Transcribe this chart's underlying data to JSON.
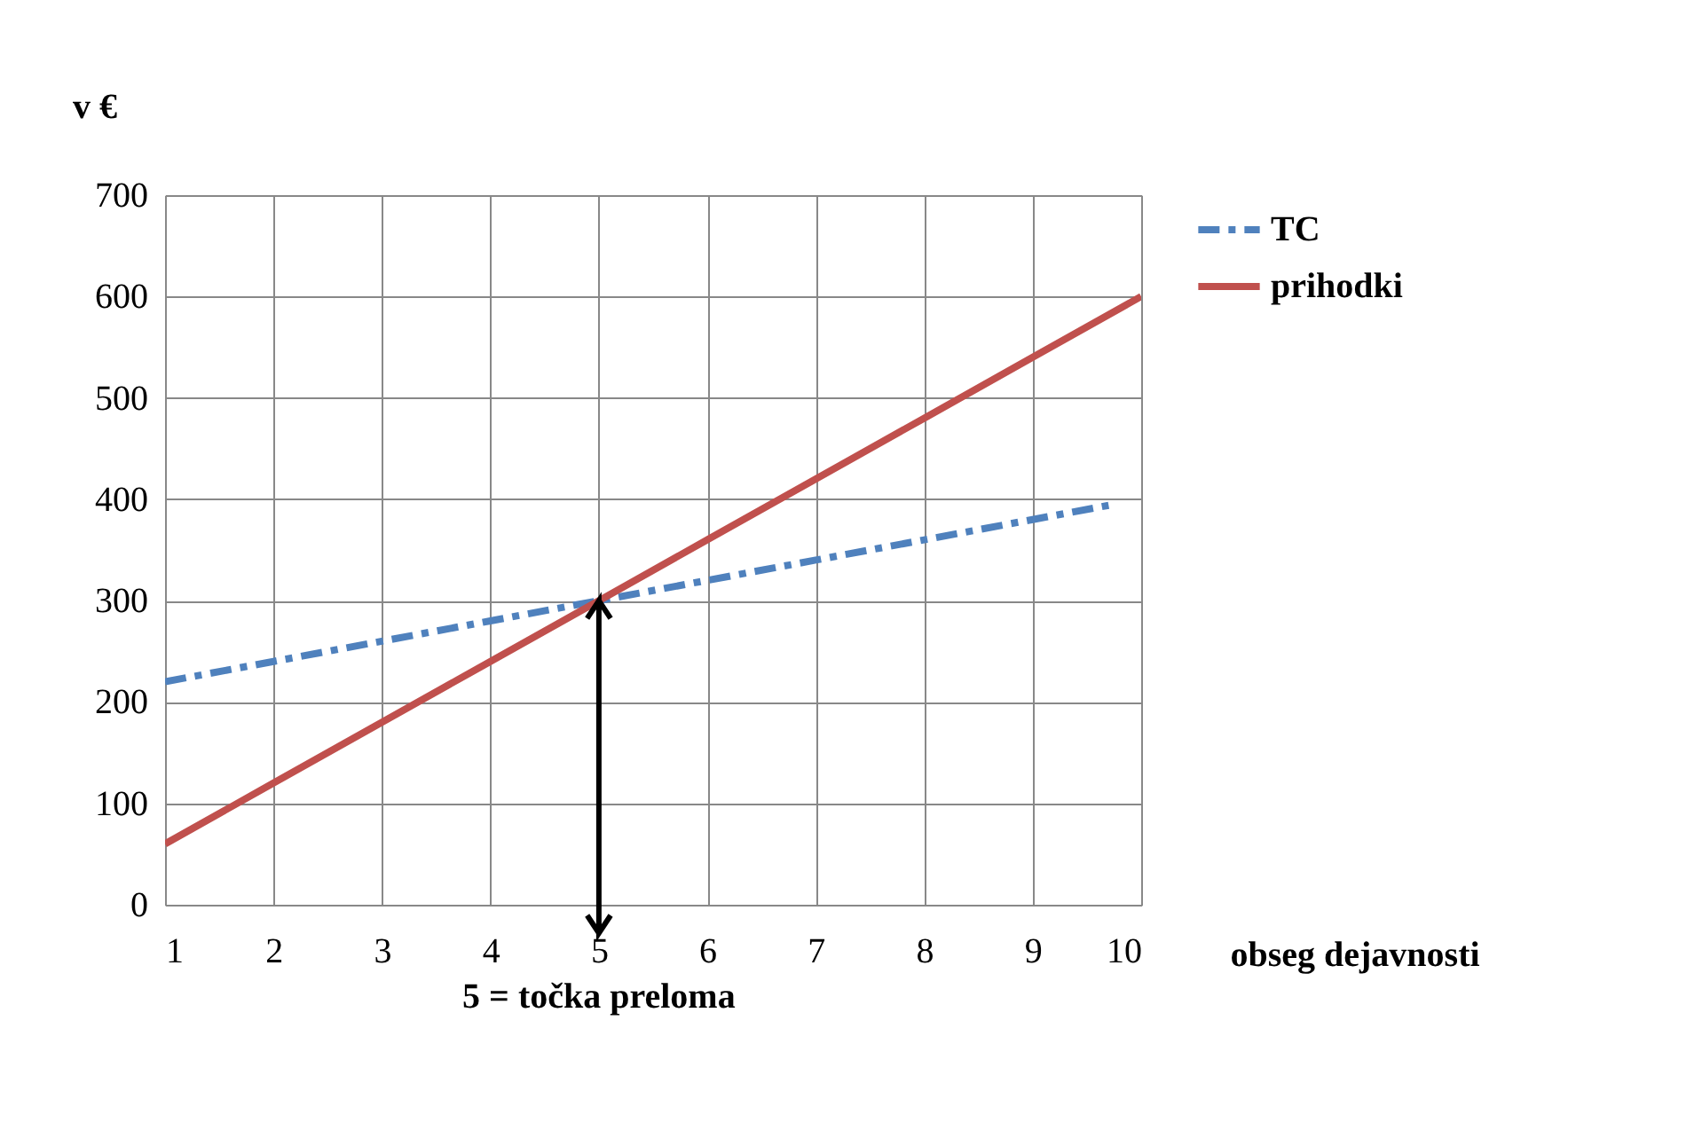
{
  "chart_data": {
    "type": "line",
    "xlabel": "obseg dejavnosti",
    "ylabel": "v €",
    "xlim": [
      1,
      10
    ],
    "xticks": [
      {
        "value": 1,
        "label": "1"
      },
      {
        "value": 2,
        "label": "2"
      },
      {
        "value": 3,
        "label": "3"
      },
      {
        "value": 4,
        "label": "4"
      },
      {
        "value": 5,
        "label": "5"
      },
      {
        "value": 6,
        "label": "6"
      },
      {
        "value": 7,
        "label": "7"
      },
      {
        "value": 8,
        "label": "8"
      },
      {
        "value": 9,
        "label": "9"
      },
      {
        "value": 10,
        "label": "10"
      }
    ],
    "ylim": [
      0,
      700
    ],
    "yticks": [
      0,
      100,
      200,
      300,
      400,
      500,
      600,
      700
    ],
    "grid": true,
    "legend": "right",
    "marker": "none",
    "series": [
      {
        "name": "TC",
        "color": "#4f81bd",
        "line_style": "dashed",
        "x": [
          1,
          2,
          3,
          4,
          5,
          6,
          7,
          8,
          9,
          9.7
        ],
        "values": [
          220,
          240,
          260,
          280,
          300,
          320,
          340,
          360,
          380,
          394
        ]
      },
      {
        "name": "prihodki",
        "color": "#c0504d",
        "line_style": "solid",
        "x": [
          1,
          2,
          3,
          4,
          5,
          6,
          7,
          8,
          9,
          10
        ],
        "values": [
          60,
          120,
          180,
          240,
          300,
          360,
          420,
          480,
          540,
          600
        ]
      }
    ],
    "ref_lines": [
      {
        "axis": "x",
        "value": 5,
        "label": "5 = točka preloma",
        "color": "#000000"
      }
    ]
  }
}
